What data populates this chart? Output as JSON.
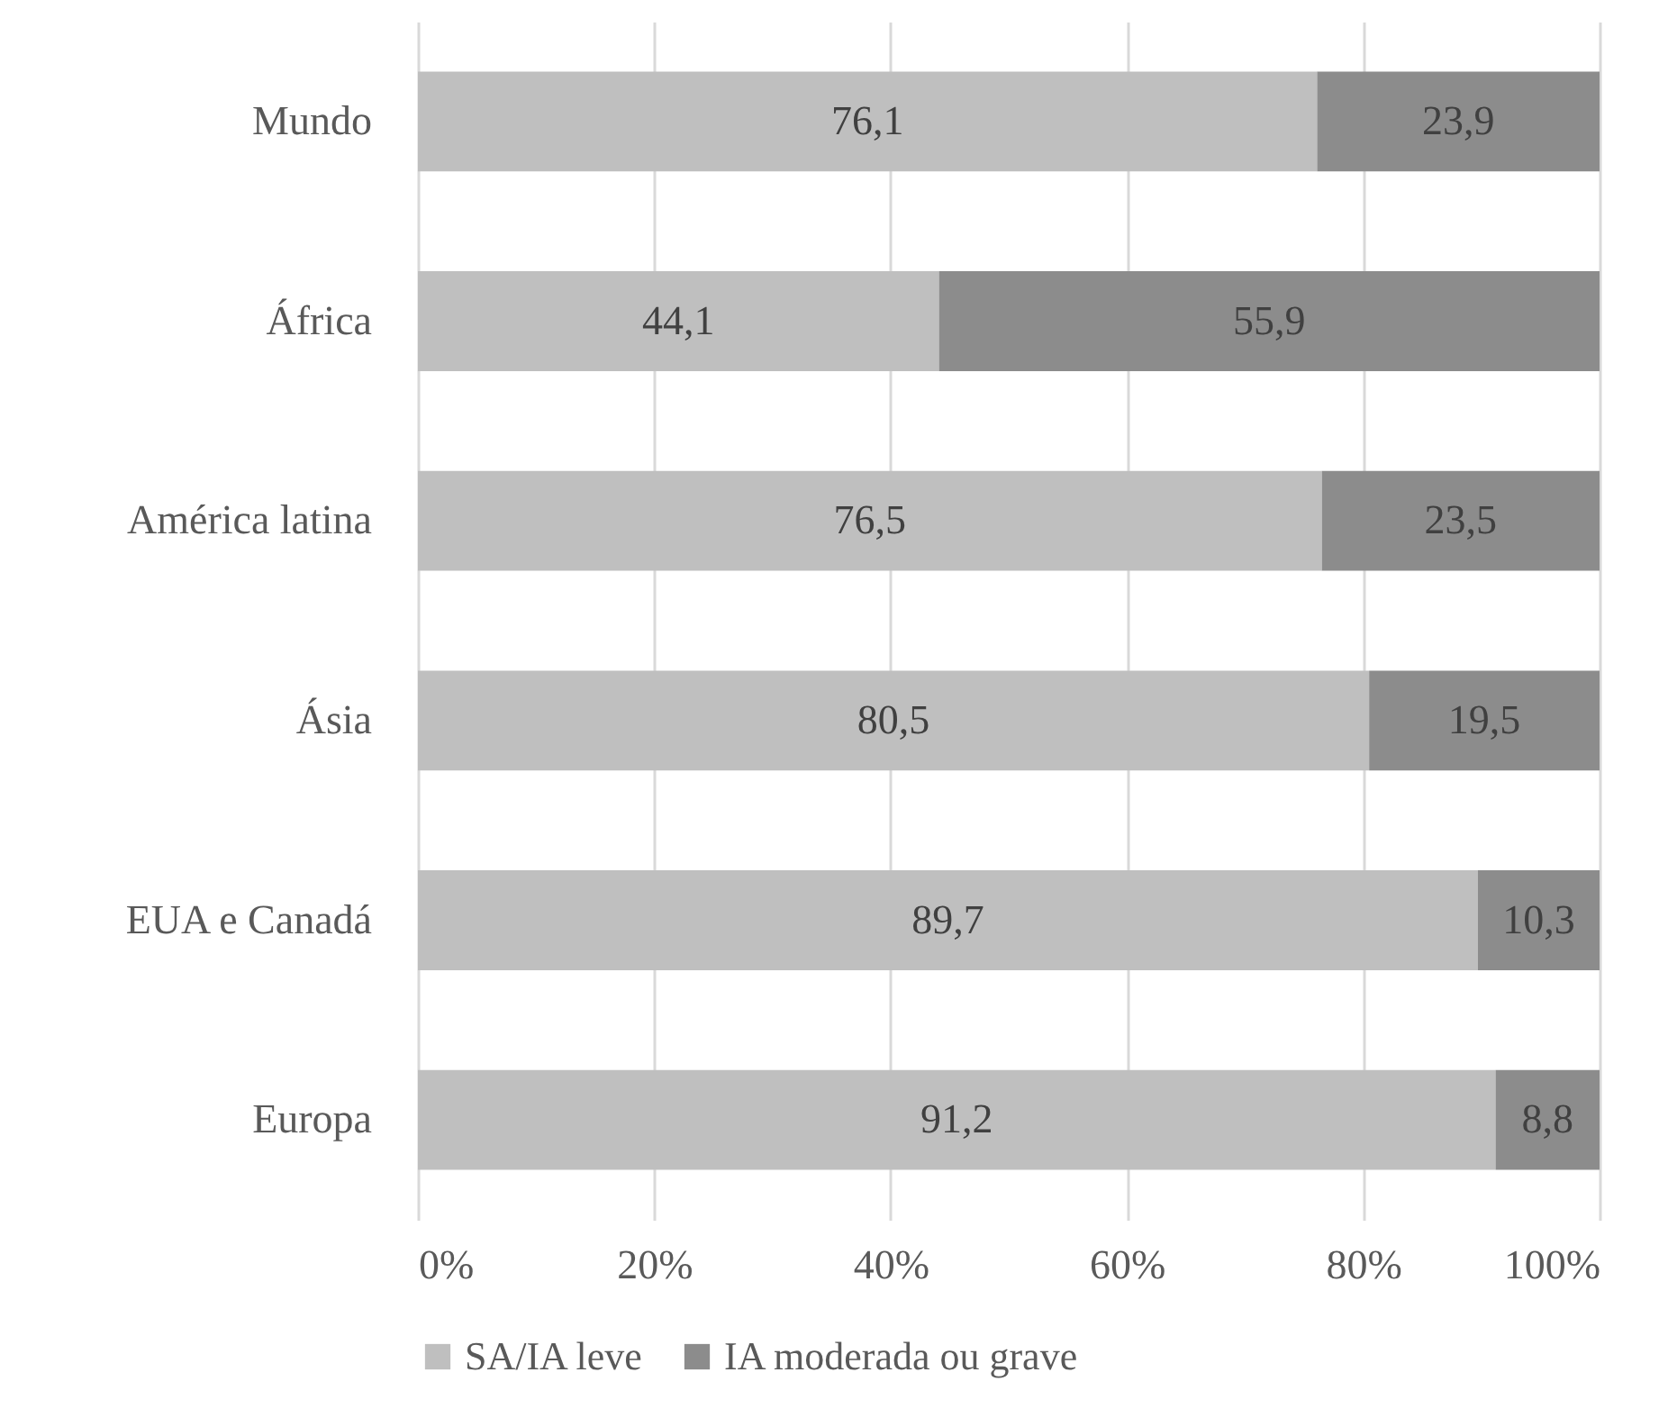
{
  "chart_data": {
    "type": "bar",
    "orientation": "horizontal",
    "stacked": true,
    "categories": [
      "Mundo",
      "África",
      "América latina",
      "Ásia",
      "EUA e Canadá",
      "Europa"
    ],
    "series": [
      {
        "name": "SA/IA leve",
        "color": "#bfbfbf",
        "values": [
          76.1,
          44.1,
          76.5,
          80.5,
          89.7,
          91.2
        ],
        "value_labels": [
          "76,1",
          "44,1",
          "76,5",
          "80,5",
          "89,7",
          "91,2"
        ]
      },
      {
        "name": "IA moderada ou grave",
        "color": "#8c8c8c",
        "values": [
          23.9,
          55.9,
          23.5,
          19.5,
          10.3,
          8.8
        ],
        "value_labels": [
          "23,9",
          "55,9",
          "23,5",
          "19,5",
          "10,3",
          "8,8"
        ]
      }
    ],
    "xlim": [
      0,
      100
    ],
    "xticks": [
      {
        "value": 0,
        "label": "0%"
      },
      {
        "value": 20,
        "label": "20%"
      },
      {
        "value": 40,
        "label": "40%"
      },
      {
        "value": 60,
        "label": "60%"
      },
      {
        "value": 80,
        "label": "80%"
      },
      {
        "value": 100,
        "label": "100%"
      }
    ],
    "grid": "x",
    "legend": "bottom"
  }
}
